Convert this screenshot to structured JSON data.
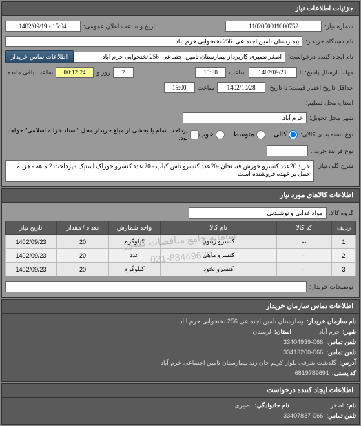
{
  "panel1": {
    "title": "جزئیات اطلاعات نیاز",
    "request_number_label": "شماره نیاز:",
    "request_number": "1102050019000752",
    "announce_date_label": "تاریخ و ساعت اعلان عمومی:",
    "announce_date": "1402/09/19 - 15:04",
    "buyer_device_label": "نام دستگاه خریدار:",
    "buyer_device": "بیمارستان تامین اجتماعی  256 تختخوابی خرم اباد",
    "request_creator_label": "نام ایجاد کننده درخواست:",
    "request_creator": "اصغر نصیری کارپرداز بیمارستان تامین اجتماعی  256 تختخوابی خرم اباد",
    "buyer_contact_btn": "اطلاعات تماس خریدار",
    "response_deadline_label": "مهلت ارسال پاسخ: تا",
    "response_date": "1402/09/21",
    "response_time_label": "ساعت",
    "response_time": "15:30",
    "days_label": "روز و",
    "days": "2",
    "remaining_label": "ساعت باقی مانده",
    "remaining_time": "00:12:24",
    "validity_label": "حداقل تاریخ اعتبار قیمت: تا تاریخ:",
    "validity_date": "1402/10/28",
    "validity_time_label": "ساعت",
    "validity_time": "15:00",
    "location_label": "استان محل تسلیم:",
    "city_label": "شهر محل تحویل:",
    "city": "خرم آباد",
    "quality_label": "نوع بسته بندی کالای:",
    "quality_options": [
      "کالی",
      "متوسط",
      "خوب"
    ],
    "checkbox_label": "پرداخت تمام یا بخشی از مبلغ خریداز محل \"اسناد خزانه اسلامی\" خواهد بود.",
    "purchase_process_label": "نوع فرآیند خرید :",
    "description_label": "شرح کلی نیاز:",
    "description": "خرید 20عدد کنسرو خورش فسنجان -20عدد کنسرو تاس کباب - 20 عدد کنسرو خوراک استیک - پرداخت 2 ماهه - هزینه حمل بر عهده فروشنده است"
  },
  "panel2": {
    "title": "اطلاعات کالاهای مورد نیاز",
    "group_label": "گروه کالا:",
    "group": "مواد غذایی و نوشیدنی",
    "columns": [
      "ردیف",
      "کد کالا",
      "نام کالا",
      "واحد شمارش",
      "تعداد / مقدار",
      "تاریخ نیاز"
    ],
    "rows": [
      [
        "1",
        "--",
        "کنسرو زیتون",
        "کیلوگرم",
        "20",
        "1402/09/23"
      ],
      [
        "2",
        "--",
        "کنسرو ماهی",
        "عدد",
        "20",
        "1402/09/23"
      ],
      [
        "3",
        "--",
        "کنسرو نخود",
        "کیلوگرم",
        "20",
        "1402/09/23"
      ]
    ],
    "explanations_label": "توضیحات خریدار:",
    "watermark_line1": "سامانه جامع مناقصات کشور",
    "watermark_line2": "021-88449670"
  },
  "panel3": {
    "title": "اطلاعات تماس سازمان خریدار",
    "org_name_label": "نام سازمان خریدار:",
    "org_name": "بیمارستان تامین اجتماعی 256 تختخوابی خرم اباد",
    "city_label": "شهر:",
    "city": "خرم آباد",
    "province_label": "استان:",
    "province": "لرستان",
    "phone_label": "تلفن تماس:",
    "phone": "33404939-066",
    "fax_label": "تلفن تماس:",
    "fax": "33413200-066",
    "address_label": "آدرس:",
    "address": "گلدشت شرقی بلوار کریم خان زند بیمارستان تامین اجتماعی خرم آباد",
    "postal_label": "کد پستی:",
    "postal": "6819789691"
  },
  "panel4": {
    "title": "اطلاعات ایجاد کننده درخواست",
    "name_label": "نام:",
    "name": "اصغر",
    "family_label": "نام خانوادگی:",
    "family": "نصیری",
    "phone_label": "تلفن تماس:",
    "phone": "33407837-066"
  }
}
